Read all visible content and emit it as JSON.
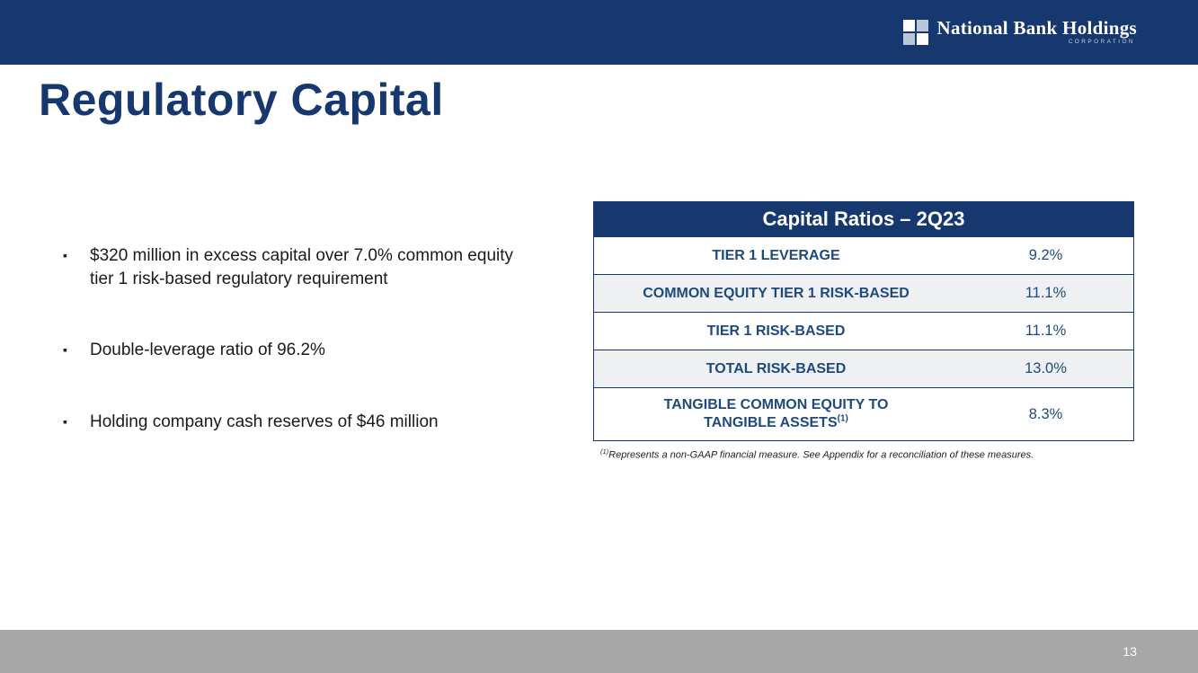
{
  "slide": {
    "title": "Regulatory Capital",
    "page_number": "13"
  },
  "header": {
    "logo_text": "National Bank Holdings",
    "logo_subtext": "CORPORATION"
  },
  "bullets": [
    "$320 million in excess capital over 7.0% common equity tier 1 risk-based regulatory requirement",
    "Double-leverage ratio of 96.2%",
    "Holding company cash reserves of $46 million"
  ],
  "table": {
    "title": "Capital Ratios – 2Q23",
    "rows": [
      {
        "label": "TIER 1 LEVERAGE",
        "value": "9.2%"
      },
      {
        "label": "COMMON EQUITY TIER 1 RISK-BASED",
        "value": "11.1%"
      },
      {
        "label": "TIER 1 RISK-BASED",
        "value": "11.1%"
      },
      {
        "label": "TOTAL RISK-BASED",
        "value": "13.0%"
      },
      {
        "label": "TANGIBLE COMMON EQUITY TO TANGIBLE ASSETS",
        "sup": "(1)",
        "value": "8.3%"
      }
    ]
  },
  "footnote": {
    "sup": "(1)",
    "text": "Represents a non-GAAP financial measure.  See Appendix for a reconciliation of these measures."
  },
  "colors": {
    "navy": "#17386e",
    "table_text": "#1e4a7c",
    "row_alt": "#eef0f2",
    "footer_gray": "#a7a7a7"
  }
}
